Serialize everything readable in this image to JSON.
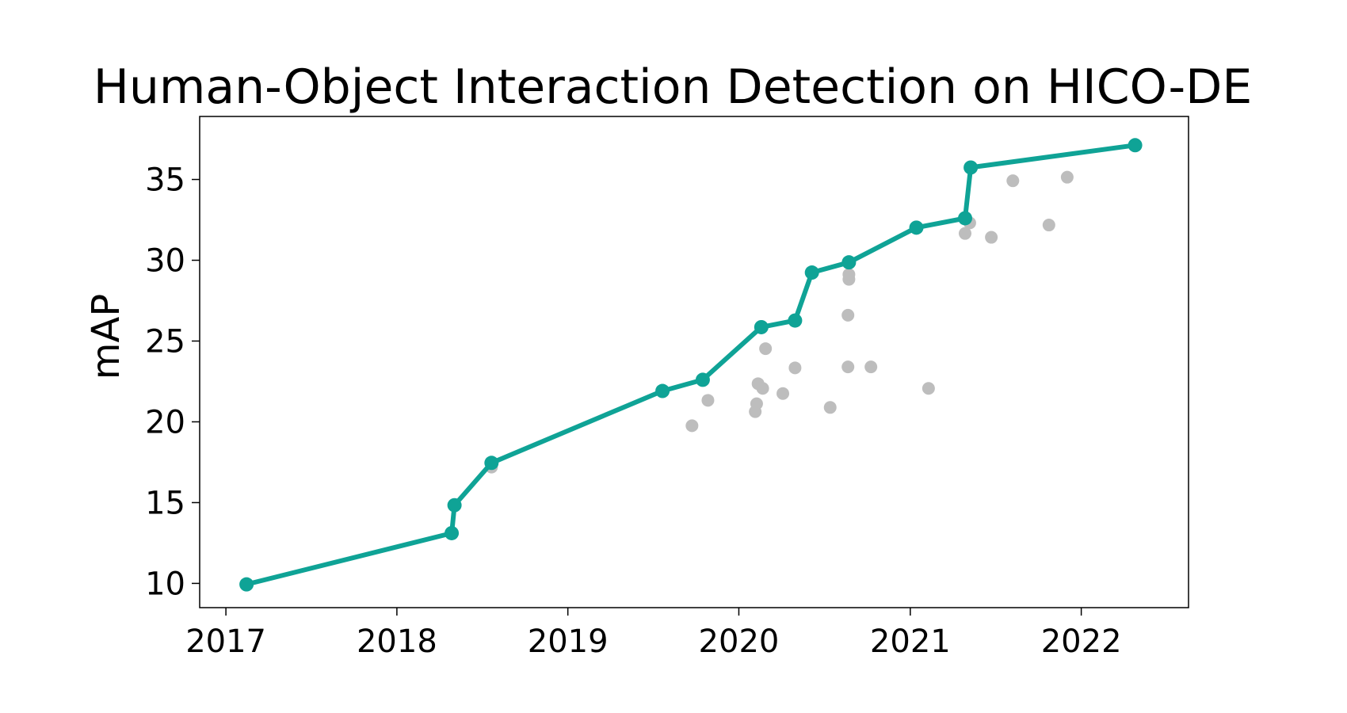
{
  "chart_data": {
    "type": "line",
    "title": "Human-Object Interaction Detection on HICO-DE",
    "xlabel": "",
    "ylabel": "mAP",
    "xlim": [
      "2016-11-06",
      "2022-08-18"
    ],
    "ylim": [
      8.5,
      38.9
    ],
    "x_ticks": [
      "2017",
      "2018",
      "2019",
      "2020",
      "2021",
      "2022"
    ],
    "y_ticks": [
      10,
      15,
      20,
      25,
      30,
      35
    ],
    "grid": false,
    "colors": {
      "frontier": "#0fa396",
      "others": "#bdbdbd"
    },
    "series": [
      {
        "role": "state-of-the-art",
        "style": "line-markers",
        "points": [
          {
            "x": "2017-02-14",
            "y": 9.94
          },
          {
            "x": "2018-04-28",
            "y": 13.11
          },
          {
            "x": "2018-05-04",
            "y": 14.84
          },
          {
            "x": "2018-07-22",
            "y": 17.46
          },
          {
            "x": "2019-07-22",
            "y": 21.91
          },
          {
            "x": "2019-10-16",
            "y": 22.6
          },
          {
            "x": "2020-02-18",
            "y": 25.86
          },
          {
            "x": "2020-04-30",
            "y": 26.27
          },
          {
            "x": "2020-06-05",
            "y": 29.24
          },
          {
            "x": "2020-08-23",
            "y": 29.87
          },
          {
            "x": "2021-01-14",
            "y": 32.02
          },
          {
            "x": "2021-04-28",
            "y": 32.6
          },
          {
            "x": "2021-05-10",
            "y": 35.74
          },
          {
            "x": "2022-04-26",
            "y": 37.12
          }
        ]
      },
      {
        "role": "other-methods",
        "style": "scatter",
        "points": [
          {
            "x": "2018-07-22",
            "y": 17.2
          },
          {
            "x": "2019-09-23",
            "y": 19.76
          },
          {
            "x": "2019-10-27",
            "y": 21.33
          },
          {
            "x": "2020-02-05",
            "y": 20.63
          },
          {
            "x": "2020-02-08",
            "y": 21.12
          },
          {
            "x": "2020-02-11",
            "y": 22.36
          },
          {
            "x": "2020-02-21",
            "y": 22.07
          },
          {
            "x": "2020-02-27",
            "y": 24.53
          },
          {
            "x": "2020-04-04",
            "y": 21.75
          },
          {
            "x": "2020-04-30",
            "y": 23.34
          },
          {
            "x": "2020-07-14",
            "y": 20.89
          },
          {
            "x": "2020-08-21",
            "y": 23.4
          },
          {
            "x": "2020-08-21",
            "y": 26.6
          },
          {
            "x": "2020-08-23",
            "y": 28.82
          },
          {
            "x": "2020-08-23",
            "y": 29.12
          },
          {
            "x": "2020-10-09",
            "y": 23.4
          },
          {
            "x": "2021-02-09",
            "y": 22.07
          },
          {
            "x": "2021-04-28",
            "y": 31.66
          },
          {
            "x": "2021-05-08",
            "y": 32.31
          },
          {
            "x": "2021-06-23",
            "y": 31.42
          },
          {
            "x": "2021-08-08",
            "y": 34.92
          },
          {
            "x": "2021-10-24",
            "y": 32.18
          },
          {
            "x": "2021-12-02",
            "y": 35.14
          }
        ]
      }
    ]
  }
}
